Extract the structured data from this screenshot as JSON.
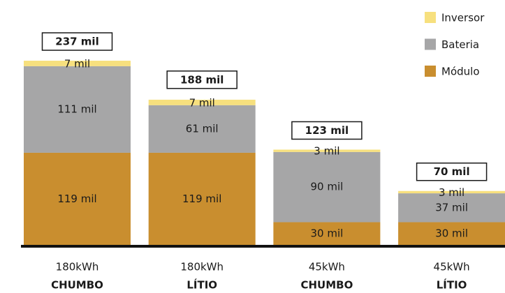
{
  "chart_data": {
    "type": "stacked-bar",
    "categories": [
      "180kWh",
      "180kWh",
      "45kWh",
      "45kWh"
    ],
    "category_sublabels": [
      "CHUMBO",
      "LÍTIO",
      "CHUMBO",
      "LÍTIO"
    ],
    "series": [
      {
        "name": "Módulo",
        "color": "#c98e2f",
        "values": [
          119,
          119,
          30,
          30
        ],
        "value_labels": [
          "119 mil",
          "119 mil",
          "30 mil",
          "30 mil"
        ]
      },
      {
        "name": "Bateria",
        "color": "#a6a6a7",
        "values": [
          111,
          61,
          90,
          37
        ],
        "value_labels": [
          "111 mil",
          "61 mil",
          "90 mil",
          "37 mil"
        ]
      },
      {
        "name": "Inversor",
        "color": "#f7e07e",
        "values": [
          7,
          7,
          3,
          3
        ],
        "value_labels": [
          "7 mil",
          "7 mil",
          "3 mil",
          "3 mil"
        ]
      }
    ],
    "totals": [
      237,
      188,
      123,
      70
    ],
    "total_labels": [
      "237 mil",
      "188 mil",
      "123 mil",
      "70 mil"
    ],
    "legend": "top-right"
  }
}
